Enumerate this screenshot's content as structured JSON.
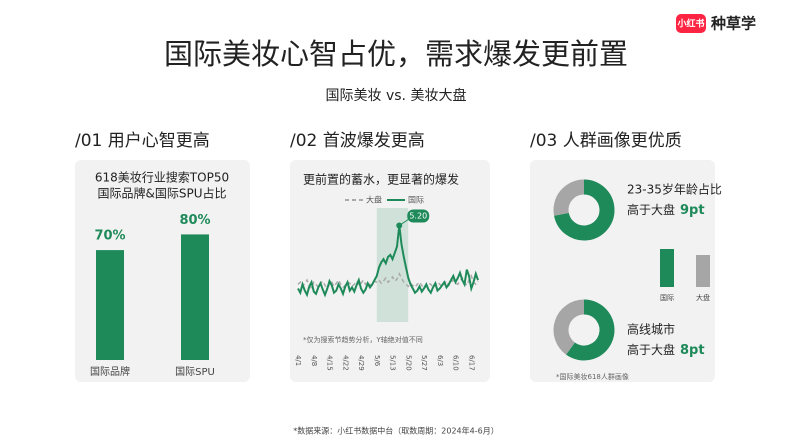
{
  "logo": {
    "badge": "小红书",
    "text": "种草学"
  },
  "title": "国际美妆心智占优，需求爆发更前置",
  "subtitle": "国际美妆 vs. 美妆大盘",
  "panels": [
    {
      "heading": "/01 用户心智更高"
    },
    {
      "heading": "/02 首波爆发更高"
    },
    {
      "heading": "/03 人群画像更优质"
    }
  ],
  "footer": "*数据来源：小红书数据中台（取数周期：2024年4-6月）",
  "chart_data": [
    {
      "type": "bar",
      "title_lines": [
        "618美妆行业搜索TOP50",
        "国际品牌&国际SPU占比"
      ],
      "categories": [
        "国际品牌",
        "国际SPU"
      ],
      "values": [
        70,
        80
      ],
      "value_labels": [
        "70%",
        "80%"
      ],
      "color": "#1e8a5a",
      "ylim": [
        0,
        100
      ]
    },
    {
      "type": "line",
      "title": "更前置的蓄水，更显著的爆发",
      "categories": [
        "4/1",
        null,
        null,
        null,
        null,
        null,
        null,
        "4/8",
        null,
        null,
        null,
        null,
        null,
        null,
        "4/15",
        null,
        null,
        null,
        null,
        null,
        null,
        "4/22",
        null,
        null,
        null,
        null,
        null,
        null,
        "4/29",
        null,
        null,
        null,
        null,
        null,
        null,
        "5/6",
        null,
        null,
        null,
        null,
        null,
        null,
        "5/13",
        null,
        null,
        null,
        null,
        null,
        null,
        "5/20",
        null,
        null,
        null,
        null,
        null,
        null,
        "5/27",
        null,
        null,
        null,
        null,
        null,
        null,
        "6/3",
        null,
        null,
        null,
        null,
        null,
        null,
        "6/10",
        null,
        null,
        null,
        null,
        null,
        null,
        "6/17",
        null,
        null,
        null
      ],
      "series": [
        {
          "name": "大盘",
          "color": "#aaaaaa",
          "dashed": true,
          "values": [
            34,
            36,
            32,
            35,
            38,
            33,
            30,
            36,
            34,
            31,
            35,
            37,
            33,
            30,
            34,
            36,
            32,
            35,
            38,
            34,
            31,
            33,
            36,
            35,
            32,
            34,
            37,
            33,
            35,
            38,
            34,
            36,
            33,
            35,
            37,
            36,
            38,
            35,
            37,
            40,
            36,
            38,
            41,
            37,
            39,
            44,
            40,
            36,
            34,
            32,
            35,
            33,
            31,
            34,
            36,
            33,
            30,
            32,
            35,
            34,
            31,
            33,
            36,
            34,
            32,
            35,
            37,
            33,
            36,
            38,
            35,
            34,
            37,
            40,
            36,
            33,
            38,
            42,
            36,
            34,
            37
          ]
        },
        {
          "name": "国际",
          "color": "#1e8a5a",
          "values": [
            30,
            26,
            34,
            28,
            24,
            32,
            36,
            27,
            25,
            31,
            35,
            29,
            24,
            30,
            37,
            33,
            26,
            28,
            34,
            30,
            25,
            32,
            36,
            28,
            31,
            27,
            33,
            38,
            30,
            26,
            29,
            35,
            31,
            34,
            38,
            42,
            50,
            55,
            58,
            54,
            60,
            62,
            58,
            64,
            70,
            90,
            72,
            60,
            50,
            40,
            34,
            30,
            26,
            28,
            32,
            27,
            30,
            34,
            29,
            26,
            31,
            35,
            28,
            30,
            33,
            36,
            31,
            34,
            38,
            42,
            36,
            40,
            45,
            38,
            34,
            48,
            42,
            30,
            36,
            44,
            38
          ]
        }
      ],
      "ylim": [
        0,
        100
      ],
      "highlight": [
        "5/6",
        "5/20"
      ],
      "annotation": "5.20",
      "note": "*仅为搜索节趋势分析，Y轴绝对值不同"
    },
    {
      "type": "pie",
      "donut": true,
      "values": [
        72,
        28
      ],
      "colors": [
        "#1e8a5a",
        "#a6a6a6"
      ],
      "caption": "23-35岁年龄占比",
      "diff_label": "高于大盘",
      "diff": "9pt"
    },
    {
      "type": "bar",
      "categories": [
        "国际",
        "大盘"
      ],
      "values": [
        38,
        32
      ],
      "colors": [
        "#1e8a5a",
        "#a6a6a6"
      ],
      "ylim": [
        0,
        40
      ]
    },
    {
      "type": "pie",
      "donut": true,
      "values": [
        60,
        40
      ],
      "colors": [
        "#1e8a5a",
        "#a6a6a6"
      ],
      "caption": "高线城市",
      "diff_label": "高于大盘",
      "diff": "8pt",
      "note": "*国际美妆618人群画像"
    }
  ]
}
